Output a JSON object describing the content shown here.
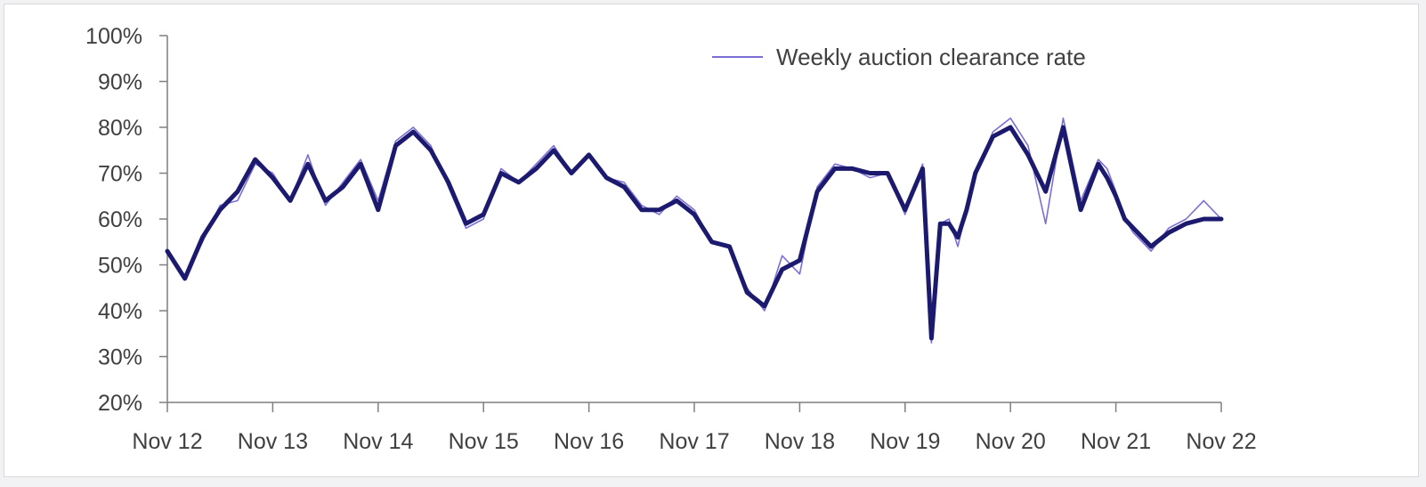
{
  "chart_data": {
    "type": "line",
    "title": "",
    "xlabel": "",
    "ylabel": "",
    "ylim": [
      20,
      100
    ],
    "xlim": [
      "Nov 12",
      "Nov 22"
    ],
    "y_ticks": [
      "100%",
      "90%",
      "80%",
      "70%",
      "60%",
      "50%",
      "40%",
      "30%",
      "20%"
    ],
    "y_tick_values": [
      100,
      90,
      80,
      70,
      60,
      50,
      40,
      30,
      20
    ],
    "x_ticks": [
      "Nov 12",
      "Nov 13",
      "Nov 14",
      "Nov 15",
      "Nov 16",
      "Nov 17",
      "Nov 18",
      "Nov 19",
      "Nov 20",
      "Nov 21",
      "Nov 22"
    ],
    "grid": false,
    "legend": {
      "placement": "top-right",
      "entries": [
        "Weekly auction clearance rate"
      ]
    },
    "colors": {
      "weekly": "#7b6fd6",
      "smoothed": "#1b1a6e",
      "axis": "#7f7f7f"
    },
    "series": [
      {
        "name": "Weekly auction clearance rate",
        "style": "thin",
        "x": [
          "Nov 12",
          "Jan 13",
          "Mar 13",
          "May 13",
          "Jul 13",
          "Sep 13",
          "Nov 13",
          "Jan 14",
          "Mar 14",
          "May 14",
          "Jul 14",
          "Sep 14",
          "Nov 14",
          "Jan 15",
          "Mar 15",
          "May 15",
          "Jul 15",
          "Sep 15",
          "Nov 15",
          "Jan 16",
          "Mar 16",
          "May 16",
          "Jul 16",
          "Sep 16",
          "Nov 16",
          "Jan 17",
          "Mar 17",
          "May 17",
          "Jul 17",
          "Sep 17",
          "Nov 17",
          "Jan 18",
          "Mar 18",
          "May 18",
          "Jul 18",
          "Sep 18",
          "Nov 18",
          "Jan 19",
          "Mar 19",
          "May 19",
          "Jul 19",
          "Sep 19",
          "Nov 19",
          "Jan 20",
          "Feb 20",
          "Mar 20",
          "Apr 20",
          "May 20",
          "Jun 20",
          "Jul 20",
          "Sep 20",
          "Nov 20",
          "Jan 21",
          "Mar 21",
          "May 21",
          "Jul 21",
          "Sep 21",
          "Oct 21",
          "Nov 21",
          "Dec 21",
          "Jan 22",
          "Mar 22",
          "May 22",
          "Jul 22",
          "Sep 22",
          "Nov 22"
        ],
        "values": [
          53,
          47,
          55,
          63,
          64,
          72,
          70,
          64,
          74,
          63,
          68,
          73,
          64,
          77,
          80,
          76,
          67,
          58,
          60,
          71,
          68,
          72,
          76,
          70,
          74,
          69,
          68,
          63,
          61,
          65,
          62,
          55,
          54,
          45,
          40,
          52,
          48,
          67,
          72,
          71,
          69,
          70,
          61,
          72,
          33,
          59,
          60,
          54,
          62,
          70,
          79,
          82,
          76,
          59,
          82,
          64,
          73,
          71,
          66,
          60,
          57,
          53,
          58,
          60,
          64,
          60
        ]
      },
      {
        "name": "",
        "style": "thick",
        "x": [
          "Nov 12",
          "Jan 13",
          "Mar 13",
          "May 13",
          "Jul 13",
          "Sep 13",
          "Nov 13",
          "Jan 14",
          "Mar 14",
          "May 14",
          "Jul 14",
          "Sep 14",
          "Nov 14",
          "Jan 15",
          "Mar 15",
          "May 15",
          "Jul 15",
          "Sep 15",
          "Nov 15",
          "Jan 16",
          "Mar 16",
          "May 16",
          "Jul 16",
          "Sep 16",
          "Nov 16",
          "Jan 17",
          "Mar 17",
          "May 17",
          "Jul 17",
          "Sep 17",
          "Nov 17",
          "Jan 18",
          "Mar 18",
          "May 18",
          "Jul 18",
          "Sep 18",
          "Nov 18",
          "Jan 19",
          "Mar 19",
          "May 19",
          "Jul 19",
          "Sep 19",
          "Nov 19",
          "Jan 20",
          "Feb 20",
          "Mar 20",
          "Apr 20",
          "May 20",
          "Jun 20",
          "Jul 20",
          "Sep 20",
          "Nov 20",
          "Jan 21",
          "Mar 21",
          "May 21",
          "Jul 21",
          "Sep 21",
          "Oct 21",
          "Nov 21",
          "Dec 21",
          "Jan 22",
          "Mar 22",
          "May 22",
          "Jul 22",
          "Sep 22",
          "Nov 22"
        ],
        "values": [
          53,
          47,
          56,
          62,
          66,
          73,
          69,
          64,
          72,
          64,
          67,
          72,
          62,
          76,
          79,
          75,
          68,
          59,
          61,
          70,
          68,
          71,
          75,
          70,
          74,
          69,
          67,
          62,
          62,
          64,
          61,
          55,
          54,
          44,
          41,
          49,
          51,
          66,
          71,
          71,
          70,
          70,
          62,
          71,
          34,
          59,
          59,
          56,
          62,
          70,
          78,
          80,
          74,
          66,
          80,
          62,
          72,
          69,
          65,
          60,
          58,
          54,
          57,
          59,
          60,
          60
        ]
      }
    ]
  }
}
